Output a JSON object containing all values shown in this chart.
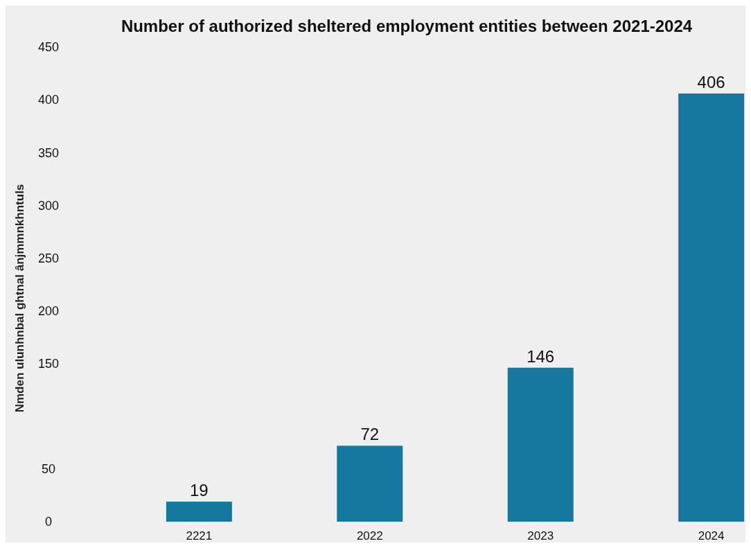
{
  "chart_data": {
    "type": "bar",
    "title": "Number of authorized sheltered employment entities between 2021-2024",
    "ylabel": "Nmden ulunhnbal ghtnal ânjmmnkhntuls",
    "categories": [
      "2221",
      "2022",
      "2023",
      "2024"
    ],
    "values": [
      19,
      72,
      146,
      406
    ],
    "color": "#16789f",
    "ylim": [
      0,
      450
    ],
    "yticks": [
      0,
      50,
      150,
      200,
      250,
      300,
      350,
      400,
      450
    ],
    "data_labels": true,
    "grid": false
  }
}
